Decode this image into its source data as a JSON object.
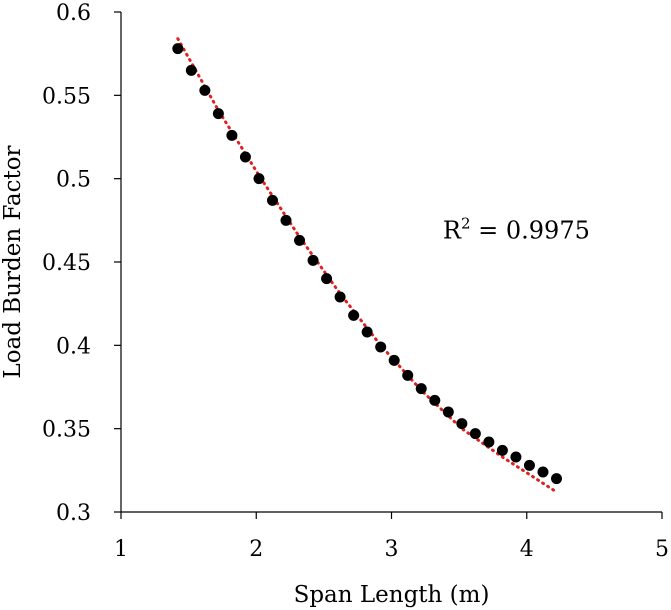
{
  "chart_data": {
    "type": "scatter",
    "title": "",
    "xlabel": "Span Length (m)",
    "ylabel": "Load Burden Factor",
    "xlim": [
      1,
      5
    ],
    "ylim": [
      0.3,
      0.6
    ],
    "x_ticks": [
      "1",
      "2",
      "3",
      "4",
      "5"
    ],
    "y_ticks": [
      "0.3",
      "0.35",
      "0.4",
      "0.45",
      "0.5",
      "0.55",
      "0.6"
    ],
    "grid": false,
    "legend": "none",
    "series": [
      {
        "marker_color": "#000000",
        "x": [
          1.42,
          1.52,
          1.62,
          1.72,
          1.82,
          1.92,
          2.02,
          2.12,
          2.22,
          2.32,
          2.42,
          2.52,
          2.62,
          2.72,
          2.82,
          2.92,
          3.02,
          3.12,
          3.22,
          3.32,
          3.42,
          3.52,
          3.62,
          3.72,
          3.82,
          3.92,
          4.02,
          4.12,
          4.22
        ],
        "y": [
          0.578,
          0.565,
          0.553,
          0.539,
          0.526,
          0.513,
          0.5,
          0.487,
          0.475,
          0.463,
          0.451,
          0.44,
          0.429,
          0.418,
          0.408,
          0.399,
          0.391,
          0.382,
          0.374,
          0.367,
          0.36,
          0.353,
          0.347,
          0.342,
          0.337,
          0.333,
          0.328,
          0.324,
          0.32
        ]
      }
    ],
    "trendline": {
      "style": "dotted",
      "color": "#e02020",
      "x": [
        1.42,
        1.72,
        2.02,
        2.32,
        2.62,
        2.92,
        3.22,
        3.52,
        3.82,
        4.22
      ],
      "y": [
        0.584,
        0.541,
        0.502,
        0.465,
        0.431,
        0.4,
        0.373,
        0.35,
        0.333,
        0.312
      ]
    },
    "annotations": [
      {
        "text": "R",
        "superscript": "2",
        "suffix": " = 0.9975",
        "x": 3.38,
        "y": 0.464
      }
    ]
  }
}
